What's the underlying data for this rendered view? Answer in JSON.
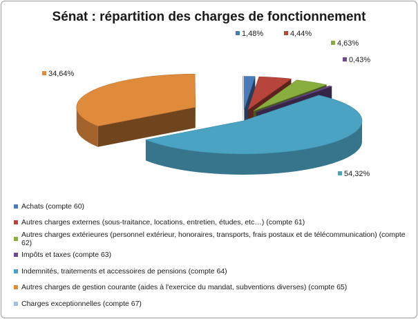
{
  "chart_data": {
    "type": "pie",
    "title": "Sénat : répartition des charges de fonctionnement",
    "slices": [
      {
        "label": "Achats (compte 60)",
        "value": 1.48,
        "data_label": "1,48%",
        "color": "#4a7ab8"
      },
      {
        "label": "Autres charges externes (sous-traitance, locations, entretien, études, etc…) (compte 61)",
        "value": 4.44,
        "data_label": "4,44%",
        "color": "#b8453c"
      },
      {
        "label": "Autres charges extérieures (personnel extérieur, honoraires, transports, frais postaux et de télécommunication) (compte 62)",
        "value": 4.63,
        "data_label": "4,63%",
        "color": "#8aae3e"
      },
      {
        "label": "Impôts et taxes (compte 63)",
        "value": 0.43,
        "data_label": "0,43%",
        "color": "#6c4a8c"
      },
      {
        "label": "Indemnités, traitements et accessoires de pensions (compte 64)",
        "value": 54.32,
        "data_label": "54,32%",
        "color": "#4ba3c3"
      },
      {
        "label": "Autres charges de gestion courante (aides à l'exercice du mandat, subventions diverses) (compte 65)",
        "value": 34.64,
        "data_label": "34,64%",
        "color": "#e08a3c"
      },
      {
        "label": "Charges exceptionnelles (compte 67)",
        "value": 0.06,
        "data_label": "",
        "color": "#9dc3e6"
      }
    ],
    "legend_position": "bottom"
  }
}
